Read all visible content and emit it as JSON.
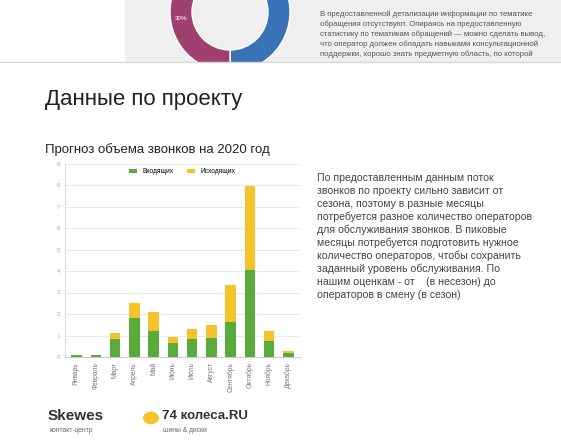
{
  "header": {
    "text_lines": [
      "В предоставленной детализации информации по тематике",
      "обращения отсутствуют. Опираясь на предоставленную",
      "статистику по тематикам обращений — можно сделать вывод,",
      "что оператор должен обладать навыками консультационной",
      "поддержки, хорошо знать предметную область, по которой"
    ],
    "pie_label": "30%"
  },
  "slide": {
    "title": "Данные по проекту",
    "paragraph_lines": [
      "По предоставленным данным поток",
      "звонков по проекту сильно зависит от",
      "сезона, поэтому в разные месяцы",
      "потребуется разное количество операторов",
      "для обслуживания звонков. В пиковые",
      "месяцы потребуется подготовить нужное",
      "количество операторов, чтобы сохранить",
      "заданный уровень обслуживания. По",
      "нашим оценкам - от    (в несезон) до",
      "операторов в смену (в сезон)"
    ]
  },
  "footer": {
    "brand": "Skewes",
    "brand_subtitle": "контакт-центр",
    "partner": "74 колеса.RU",
    "partner_subtitle": "шины & диски"
  },
  "chart_data": {
    "type": "bar",
    "title": "Прогноз объема звонков на 2020 год",
    "stacked": true,
    "categories": [
      "Январь",
      "Февраль",
      "Март",
      "Апрель",
      "Май",
      "Июнь",
      "Июль",
      "Август",
      "Сентябрь",
      "Октябрь",
      "Ноябрь",
      "Декабрь"
    ],
    "series": [
      {
        "name": "Входящих",
        "color": "#5aaa3c",
        "values": [
          0.1,
          0.1,
          0.85,
          1.8,
          1.2,
          0.65,
          0.85,
          0.9,
          1.65,
          4.05,
          0.75,
          0.2
        ]
      },
      {
        "name": "Исходящих",
        "color": "#f4c22b",
        "values": [
          0,
          0,
          0.25,
          0.7,
          0.9,
          0.3,
          0.45,
          0.6,
          1.7,
          3.9,
          0.45,
          0.1
        ]
      }
    ],
    "ylim": [
      0,
      9
    ],
    "yticks": [
      0,
      1,
      2,
      3,
      4,
      5,
      6,
      7,
      8,
      9
    ],
    "grid": true,
    "legend": "upper center"
  }
}
